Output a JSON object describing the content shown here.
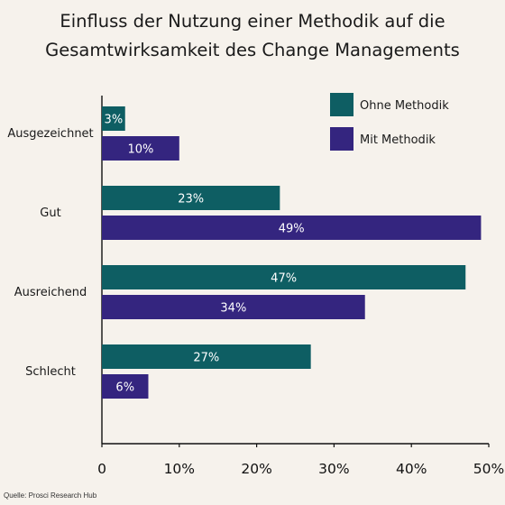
{
  "chart_data": {
    "type": "bar",
    "orientation": "horizontal",
    "title_lines": [
      "Einfluss der Nutzung einer Methodik auf die",
      "Gesamtwirksamkeit des Change Managements"
    ],
    "categories": [
      "Ausgezeichnet",
      "Gut",
      "Ausreichend",
      "Schlecht"
    ],
    "series": [
      {
        "name": "Ohne Methodik",
        "color": "#0e5e63",
        "values": [
          3,
          23,
          47,
          27
        ],
        "labels": [
          "3%",
          "23%",
          "47%",
          "27%"
        ]
      },
      {
        "name": "Mit Methodik",
        "color": "#34257f",
        "values": [
          10,
          49,
          34,
          6
        ],
        "labels": [
          "10%",
          "49%",
          "34%",
          "6%"
        ]
      }
    ],
    "xlim": [
      0,
      50
    ],
    "x_ticks": [
      0,
      10,
      20,
      30,
      40,
      50
    ],
    "x_tick_labels": [
      "0",
      "10%",
      "20%",
      "30%",
      "40%",
      "50%"
    ],
    "legend_position": "top-right",
    "grid": false,
    "source": "Quelle: Prosci Research Hub"
  }
}
